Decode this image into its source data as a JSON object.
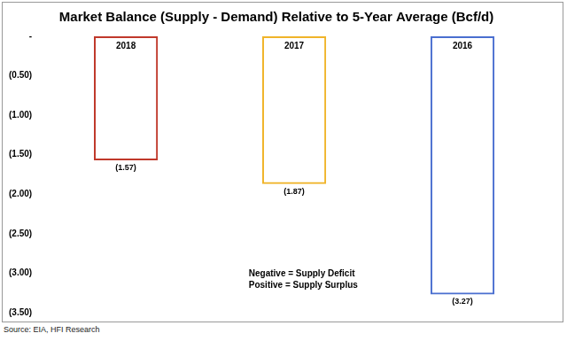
{
  "chart_data": {
    "type": "bar",
    "title": "Market Balance (Supply - Demand) Relative to 5-Year Average (Bcf/d)",
    "categories": [
      "2018",
      "2017",
      "2016"
    ],
    "values": [
      -1.57,
      -1.87,
      -3.27
    ],
    "value_labels": [
      "(1.57)",
      "(1.87)",
      "(3.27)"
    ],
    "colors": [
      "#c0392b",
      "#f0b429",
      "#4a6fd0"
    ],
    "ylim": [
      -3.5,
      0
    ],
    "yticks": [
      {
        "value": 0,
        "label": "-"
      },
      {
        "value": -0.5,
        "label": "(0.50)"
      },
      {
        "value": -1,
        "label": "(1.00)"
      },
      {
        "value": -1.5,
        "label": "(1.50)"
      },
      {
        "value": -2,
        "label": "(2.00)"
      },
      {
        "value": -2.5,
        "label": "(2.50)"
      },
      {
        "value": -3,
        "label": "(3.00)"
      },
      {
        "value": -3.5,
        "label": "(3.50)"
      }
    ],
    "grid": false,
    "data_labels": true,
    "tick_labels": "y",
    "annotations": [
      "Negative = Supply Deficit",
      "Positive = Supply Surplus"
    ],
    "source": "Source: EIA, HFI Research"
  }
}
